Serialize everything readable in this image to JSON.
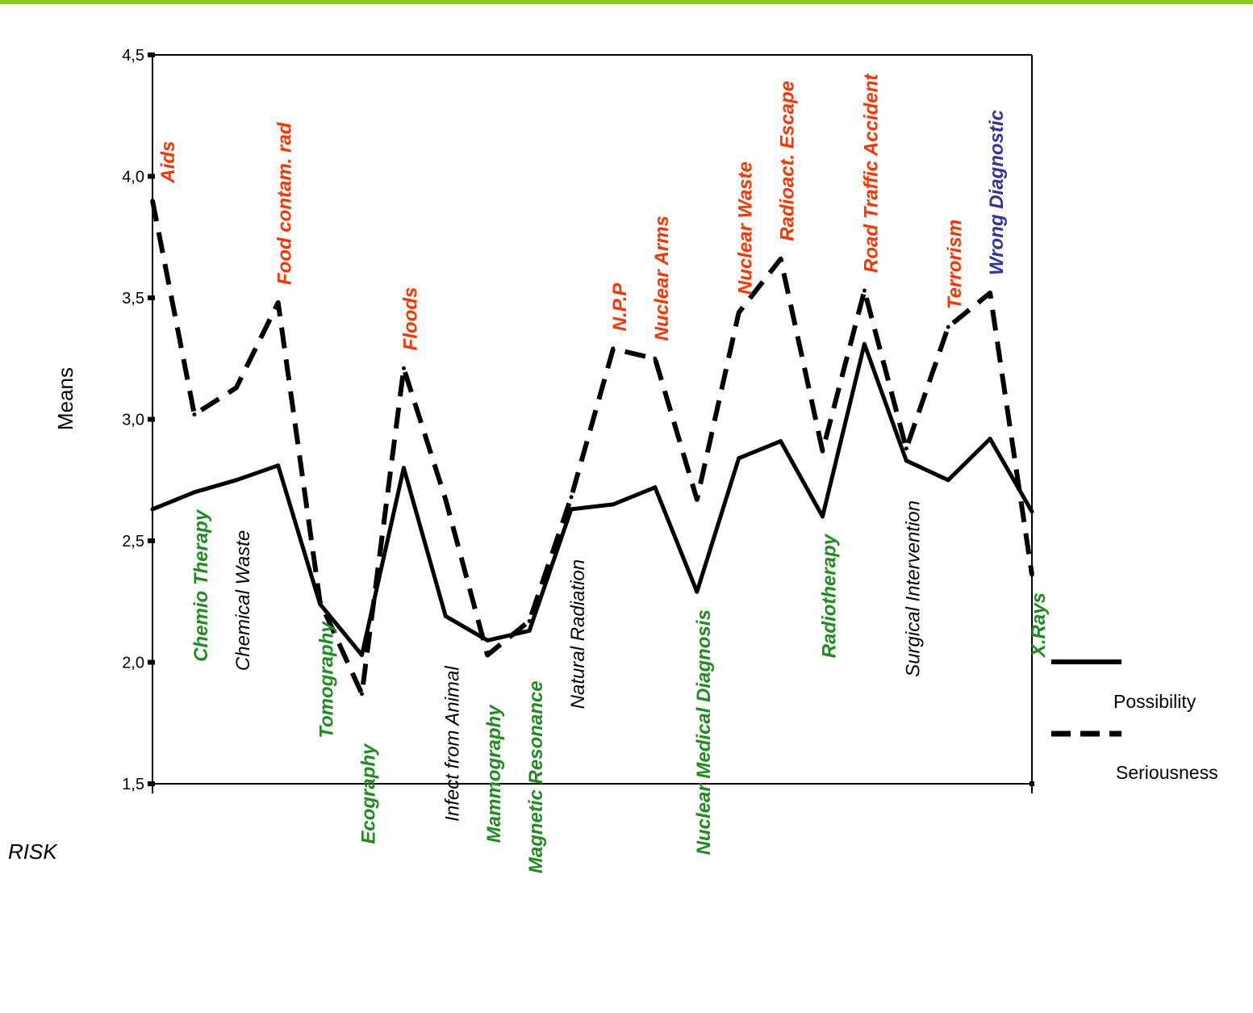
{
  "chart_data": {
    "type": "line",
    "ylabel": "Means",
    "xlabel": "RISK",
    "ylim": [
      1.5,
      4.5
    ],
    "y_ticks": [
      "1,5",
      "2,0",
      "2,5",
      "3,0",
      "3,5",
      "4,0",
      "4,5"
    ],
    "legend_position": "right",
    "colors": {
      "red": "#ff3300",
      "green": "#1e8c1e",
      "black": "#000000",
      "blue": "#3333a0",
      "top_border": "#88cc22"
    },
    "categories": [
      "Aids",
      "Chemio Therapy",
      "Chemical Waste",
      "Food contam. rad",
      "Tomography",
      "Ecography",
      "Floods",
      "Infect from Animal",
      "Mammography",
      "Magnetic Resonance",
      "Natural Radiation",
      "N.P.P",
      "Nuclear Arms",
      "Nuclear Medical Diagnosis",
      "Nuclear Waste",
      "Radioact. Escape",
      "Radiotherapy",
      "Road Traffic Accident",
      "Surgical Intervention",
      "Terrorism",
      "Wrong Diagnostic",
      "X.Rays"
    ],
    "series": [
      {
        "name": "Possibility",
        "style": "solid",
        "values": [
          2.63,
          2.7,
          2.75,
          2.81,
          2.24,
          2.03,
          2.8,
          2.19,
          2.09,
          2.13,
          2.63,
          2.65,
          2.72,
          2.29,
          2.84,
          2.91,
          2.6,
          3.31,
          2.83,
          2.75,
          2.92,
          2.62
        ]
      },
      {
        "name": "Seriousness",
        "style": "dashed",
        "values": [
          3.9,
          3.02,
          3.13,
          3.48,
          2.25,
          1.87,
          3.21,
          2.67,
          2.03,
          2.17,
          2.68,
          3.29,
          3.25,
          2.67,
          3.44,
          3.66,
          2.87,
          3.53,
          2.88,
          3.38,
          3.52,
          2.36
        ]
      }
    ],
    "risk_labels": [
      {
        "text": "Aids",
        "color": "red",
        "group": "top",
        "style": "bi"
      },
      {
        "text": "Chemio Therapy",
        "color": "green",
        "group": "mid",
        "style": "bi"
      },
      {
        "text": "Chemical Waste",
        "color": "black",
        "group": "low",
        "style": "i"
      },
      {
        "text": "Food contam. rad",
        "color": "red",
        "group": "top",
        "style": "bi"
      },
      {
        "text": "Tomography",
        "color": "green",
        "group": "mid",
        "style": "bi"
      },
      {
        "text": "Ecography",
        "color": "green",
        "group": "low",
        "style": "bi"
      },
      {
        "text": "Floods",
        "color": "red",
        "group": "top",
        "style": "bi"
      },
      {
        "text": "Infect from Animal",
        "color": "black",
        "group": "low",
        "style": "i"
      },
      {
        "text": "Mammography",
        "color": "green",
        "group": "low",
        "style": "bi"
      },
      {
        "text": "Magnetic Resonance",
        "color": "green",
        "group": "low",
        "style": "bi"
      },
      {
        "text": "Natural Radiation",
        "color": "black",
        "group": "low",
        "style": "i"
      },
      {
        "text": "N.P.P",
        "color": "red",
        "group": "top",
        "style": "bi"
      },
      {
        "text": "Nuclear Arms",
        "color": "red",
        "group": "top",
        "style": "bi"
      },
      {
        "text": "Nuclear Medical Diagnosis",
        "color": "green",
        "group": "mid",
        "style": "bi"
      },
      {
        "text": "Nuclear Waste",
        "color": "red",
        "group": "top",
        "style": "bi"
      },
      {
        "text": "Radioact. Escape",
        "color": "red",
        "group": "top",
        "style": "bi"
      },
      {
        "text": "Radiotherapy",
        "color": "green",
        "group": "mid",
        "style": "bi"
      },
      {
        "text": "Road Traffic Accident",
        "color": "red",
        "group": "top",
        "style": "bi"
      },
      {
        "text": "Surgical Intervention",
        "color": "black",
        "group": "mid",
        "style": "i"
      },
      {
        "text": "Terrorism",
        "color": "red",
        "group": "top",
        "style": "bi"
      },
      {
        "text": "Wrong Diagnostic",
        "color": "blue",
        "group": "top",
        "style": "bi"
      },
      {
        "text": "X.Rays",
        "color": "green",
        "group": "mid",
        "style": "bi"
      }
    ]
  }
}
